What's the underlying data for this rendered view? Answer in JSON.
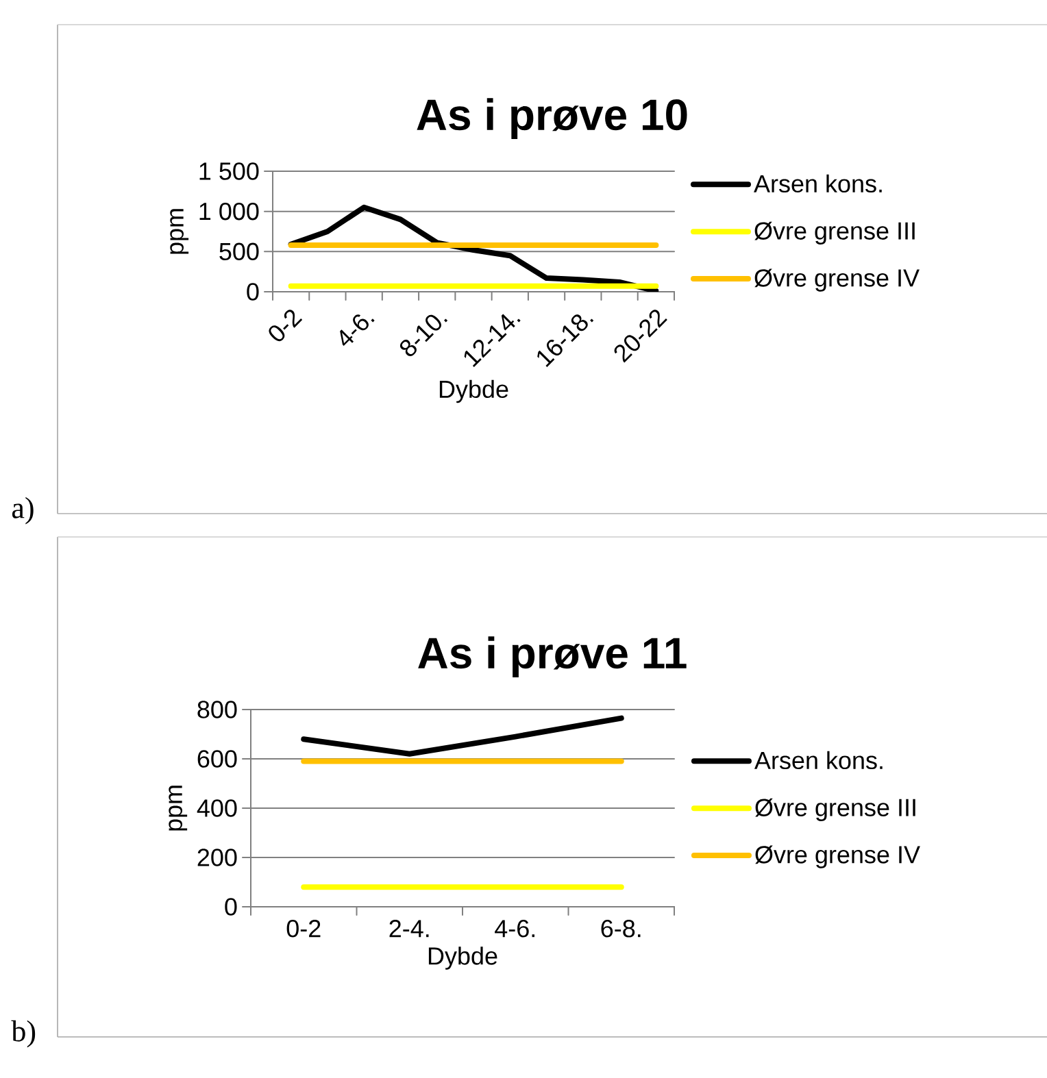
{
  "chart_data": [
    {
      "type": "line",
      "title": "As i prøve 10",
      "xlabel": "Dybde",
      "ylabel": "ppm",
      "annotations": [
        "a)"
      ],
      "categories": [
        "0-2",
        null,
        "4-6.",
        null,
        "8-10.",
        null,
        "12-14.",
        null,
        "16-18.",
        null,
        "20-22"
      ],
      "series": [
        {
          "name": "Arsen kons.",
          "color": "#000000",
          "values": [
            590,
            750,
            1050,
            900,
            610,
            520,
            450,
            170,
            150,
            120,
            10
          ]
        },
        {
          "name": "Øvre grense III",
          "color": "#ffff00",
          "values": [
            70,
            70,
            70,
            70,
            70,
            70,
            70,
            70,
            70,
            70,
            70
          ]
        },
        {
          "name": "Øvre grense IV",
          "color": "#ffc000",
          "values": [
            580,
            580,
            580,
            580,
            580,
            580,
            580,
            580,
            580,
            580,
            580
          ]
        }
      ],
      "ylim": [
        0,
        1500
      ],
      "yticks": [
        0,
        500,
        {
          "value": 1000,
          "label": "1 000"
        },
        {
          "value": 1500,
          "label": "1 500"
        }
      ],
      "grid": "y",
      "legend": "right"
    },
    {
      "type": "line",
      "title": "As i prøve 11",
      "xlabel": "Dybde",
      "ylabel": "ppm",
      "annotations": [
        "b)"
      ],
      "categories": [
        "0-2",
        "2-4.",
        "4-6.",
        "6-8."
      ],
      "series": [
        {
          "name": "Arsen kons.",
          "color": "#000000",
          "values": [
            680,
            620,
            690,
            765
          ]
        },
        {
          "name": "Øvre grense III",
          "color": "#ffff00",
          "values": [
            80,
            80,
            80,
            80
          ]
        },
        {
          "name": "Øvre grense IV",
          "color": "#ffc000",
          "values": [
            590,
            590,
            590,
            590
          ]
        }
      ],
      "ylim": [
        0,
        800
      ],
      "yticks": [
        0,
        200,
        400,
        600,
        800
      ],
      "grid": "y",
      "legend": "right"
    }
  ]
}
